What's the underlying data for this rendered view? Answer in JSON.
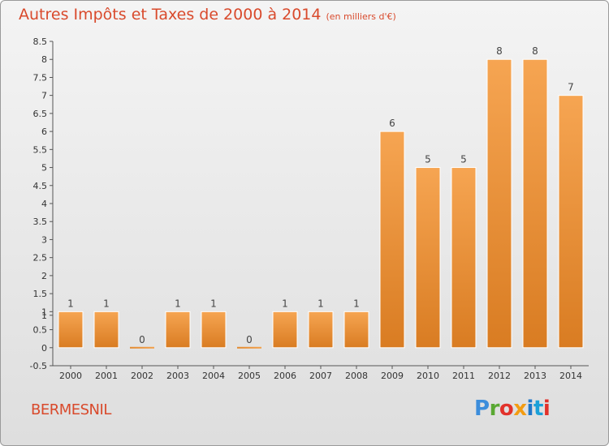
{
  "header": {
    "title": "Autres Impôts et Taxes de 2000 à 2014",
    "unit": "(en milliers d'€)"
  },
  "footer": {
    "commune": "BERMESNIL",
    "logo_letters": [
      "P",
      "r",
      "o",
      "x",
      "i",
      "t",
      "i"
    ],
    "logo_colors": [
      "#3c8ddb",
      "#5aa833",
      "#e2322b",
      "#f39c12",
      "#1f77c9",
      "#1aa0d8",
      "#e2322b"
    ]
  },
  "chart_data": {
    "type": "bar",
    "title": "Autres Impôts et Taxes de 2000 à 2014",
    "xlabel": "",
    "ylabel": "",
    "categories": [
      "2000",
      "2001",
      "2002",
      "2003",
      "2004",
      "2005",
      "2006",
      "2007",
      "2008",
      "2009",
      "2010",
      "2011",
      "2012",
      "2013",
      "2014"
    ],
    "values": [
      1,
      1,
      0,
      1,
      1,
      0,
      1,
      1,
      1,
      6,
      5,
      5,
      8,
      8,
      7
    ],
    "labels": [
      "1",
      "1",
      "0",
      "1",
      "1",
      "0",
      "1",
      "1",
      "1",
      "6",
      "5",
      "5",
      "8",
      "8",
      "7"
    ],
    "ylim": [
      -0.5,
      8.5
    ],
    "yticks": [
      "-0.5",
      "0",
      "0.5",
      "1",
      "1",
      "1.5",
      "2",
      "2.5",
      "3",
      "3.5",
      "4",
      "4.5",
      "5",
      "5.5",
      "6",
      "6.5",
      "7",
      "7.5",
      "8",
      "8.5"
    ],
    "ytick_values": [
      -0.5,
      0,
      0.5,
      0.9,
      1,
      1.5,
      2,
      2.5,
      3,
      3.5,
      4,
      4.5,
      5,
      5.5,
      6,
      6.5,
      7,
      7.5,
      8,
      8.5
    ],
    "bar_color": "#f3a04a",
    "grid": false,
    "legend": "none"
  }
}
